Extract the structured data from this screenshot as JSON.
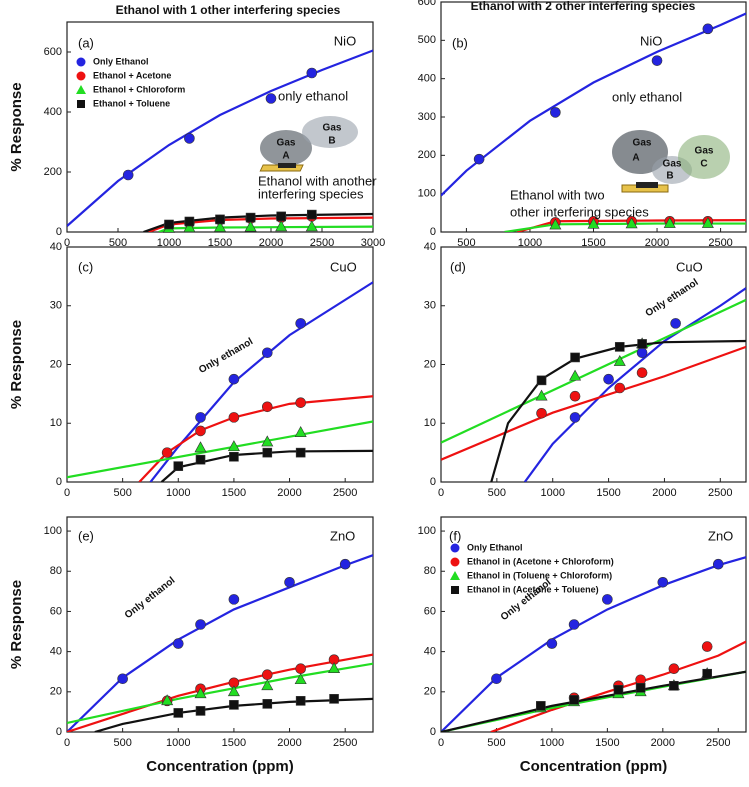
{
  "headings": [
    "Ethanol with 1 other interfering species",
    "Ethanol with 2 other interfering species"
  ],
  "chart_data": [
    {
      "type": "scatter",
      "ylabel": "% Response",
      "xlim": [
        0,
        3000
      ],
      "ylim": [
        0,
        700
      ],
      "xticks": [
        0,
        500,
        1000,
        1500,
        2000,
        2500,
        3000
      ],
      "yticks": [
        0,
        200,
        400,
        600
      ],
      "legend": "upper left",
      "annotations": [
        "(a)",
        "NiO",
        "only ethanol",
        "Gas",
        "A",
        "Gas",
        "B",
        "Ethanol with another",
        "interfering species"
      ],
      "series": [
        {
          "name": "Only Ethanol",
          "color": "#2424e0",
          "marker": "circle",
          "x": [
            600,
            1200,
            2000,
            2400
          ],
          "values": [
            190,
            312,
            445,
            530
          ],
          "fit_x": [
            0,
            500,
            1000,
            1500,
            2000,
            2500,
            3000
          ],
          "fit_values": [
            20,
            170,
            290,
            390,
            470,
            540,
            605
          ]
        },
        {
          "name": "Ethanol + Acetone",
          "color": "#ee1111",
          "marker": "circle",
          "x": [
            1000,
            1200,
            1500,
            1800,
            2100,
            2400
          ],
          "values": [
            22,
            30,
            40,
            45,
            48,
            52
          ],
          "fit_x": [
            800,
            1000,
            1500,
            2000,
            3000
          ],
          "fit_values": [
            0,
            25,
            40,
            45,
            48
          ]
        },
        {
          "name": "Ethanol + Chloroform",
          "color": "#22dd22",
          "marker": "triangle",
          "x": [
            1000,
            1200,
            1500,
            1800,
            2100,
            2400
          ],
          "values": [
            12,
            14,
            15,
            16,
            17,
            17
          ],
          "fit_x": [
            900,
            1000,
            1500,
            2000,
            3000
          ],
          "fit_values": [
            0,
            12,
            15,
            16,
            18
          ]
        },
        {
          "name": "Ethanol + Toluene",
          "color": "#111111",
          "marker": "square",
          "x": [
            1000,
            1200,
            1500,
            1800,
            2100,
            2400
          ],
          "values": [
            25,
            35,
            42,
            48,
            52,
            58
          ],
          "fit_x": [
            750,
            1000,
            1500,
            2000,
            3000
          ],
          "fit_values": [
            0,
            30,
            48,
            55,
            60
          ]
        }
      ]
    },
    {
      "type": "scatter",
      "xlim": [
        300,
        2700
      ],
      "ylim": [
        0,
        600
      ],
      "xticks": [
        500,
        1000,
        1500,
        2000,
        2500
      ],
      "yticks": [
        0,
        100,
        200,
        300,
        400,
        500,
        600
      ],
      "annotations": [
        "(b)",
        "NiO",
        "only ethanol",
        "Gas",
        "A",
        "Gas",
        "B",
        "Gas",
        "C",
        "Ethanol with two",
        "other interfering species"
      ],
      "series": [
        {
          "color": "#2424e0",
          "marker": "circle",
          "x": [
            600,
            1200,
            2000,
            2400
          ],
          "values": [
            190,
            312,
            447,
            530
          ],
          "fit_x": [
            300,
            500,
            1000,
            1500,
            2000,
            2500,
            2700
          ],
          "fit_values": [
            95,
            160,
            290,
            390,
            470,
            540,
            570
          ]
        },
        {
          "color": "#ee1111",
          "marker": "circle",
          "x": [
            1200,
            1500,
            1800,
            2100,
            2400
          ],
          "values": [
            25,
            28,
            28,
            28,
            28
          ],
          "fit_x": [
            900,
            1200,
            2000,
            2700
          ],
          "fit_values": [
            0,
            28,
            30,
            31
          ]
        },
        {
          "color": "#22dd22",
          "marker": "triangle",
          "x": [
            1200,
            1500,
            1800,
            2100,
            2400
          ],
          "values": [
            18,
            20,
            21,
            22,
            22
          ],
          "fit_x": [
            800,
            1200,
            2000,
            2700
          ],
          "fit_values": [
            0,
            20,
            22,
            22
          ]
        }
      ]
    },
    {
      "type": "scatter",
      "ylabel": "% Response",
      "xlim": [
        0,
        2750
      ],
      "ylim": [
        0,
        40
      ],
      "xticks": [
        0,
        500,
        1000,
        1500,
        2000,
        2500
      ],
      "yticks": [
        0,
        10,
        20,
        30,
        40
      ],
      "annotations": [
        "(c)",
        "CuO",
        "Only ethanol"
      ],
      "series": [
        {
          "color": "#2424e0",
          "marker": "circle",
          "x": [
            1200,
            1500,
            1800,
            2100
          ],
          "values": [
            11,
            17.5,
            22,
            27
          ],
          "fit_x": [
            750,
            1000,
            1500,
            2000,
            2500,
            2750
          ],
          "fit_values": [
            0,
            6,
            17,
            25,
            31,
            34
          ]
        },
        {
          "color": "#ee1111",
          "marker": "circle",
          "x": [
            900,
            1200,
            1500,
            1800,
            2100
          ],
          "values": [
            5,
            8.7,
            11,
            12.8,
            13.5
          ],
          "fit_x": [
            650,
            900,
            1200,
            1500,
            2000,
            2750
          ],
          "fit_values": [
            0,
            5,
            8.8,
            11,
            13.3,
            14.6
          ]
        },
        {
          "color": "#22dd22",
          "marker": "triangle",
          "x": [
            1200,
            1500,
            1800,
            2100
          ],
          "values": [
            5.8,
            6,
            6.8,
            8.4
          ],
          "fit_x": [
            0,
            2750
          ],
          "fit_values": [
            0.8,
            10.3
          ]
        },
        {
          "color": "#111111",
          "marker": "square",
          "x": [
            1000,
            1200,
            1500,
            1800,
            2100
          ],
          "values": [
            2.7,
            3.8,
            4.3,
            5,
            5
          ],
          "fit_x": [
            850,
            1000,
            1500,
            2000,
            2750
          ],
          "fit_values": [
            0,
            2.5,
            4.6,
            5.2,
            5.3
          ]
        }
      ]
    },
    {
      "type": "scatter",
      "xlim": [
        0,
        2730
      ],
      "ylim": [
        0,
        40
      ],
      "xticks": [
        0,
        500,
        1000,
        1500,
        2000,
        2500
      ],
      "yticks": [
        0,
        10,
        20,
        30,
        40
      ],
      "annotations": [
        "(d)",
        "CuO",
        "Only ethanol"
      ],
      "series": [
        {
          "color": "#2424e0",
          "marker": "circle",
          "x": [
            1200,
            1500,
            1800,
            2100
          ],
          "values": [
            11,
            17.5,
            22,
            27
          ],
          "fit_x": [
            750,
            1000,
            1500,
            2000,
            2500,
            2730
          ],
          "fit_values": [
            0,
            6.5,
            16,
            24,
            30,
            33
          ]
        },
        {
          "color": "#ee1111",
          "marker": "circle",
          "x": [
            900,
            1200,
            1600,
            1800
          ],
          "values": [
            11.7,
            14.6,
            16,
            18.6
          ],
          "fit_x": [
            0,
            1000,
            2000,
            2730
          ],
          "fit_values": [
            3.8,
            11.8,
            18,
            23
          ]
        },
        {
          "color": "#22dd22",
          "marker": "triangle",
          "x": [
            900,
            1200,
            1600,
            1800
          ],
          "values": [
            14.6,
            18,
            20.5,
            23.5
          ],
          "fit_x": [
            0,
            2730
          ],
          "fit_values": [
            6.7,
            31
          ]
        },
        {
          "color": "#111111",
          "marker": "square",
          "x": [
            900,
            1200,
            1600,
            1800
          ],
          "values": [
            17.3,
            21.2,
            23,
            23.5
          ],
          "fit_x": [
            450,
            600,
            900,
            1200,
            1600,
            2000,
            2730
          ],
          "fit_values": [
            0,
            10,
            17.5,
            21,
            23,
            23.8,
            24
          ]
        }
      ]
    },
    {
      "type": "scatter",
      "ylabel": "% Response",
      "xlabel": "Concentration (ppm)",
      "xlim": [
        0,
        2750
      ],
      "ylim": [
        0,
        107
      ],
      "xticks": [
        0,
        500,
        1000,
        1500,
        2000,
        2500
      ],
      "yticks": [
        0,
        20,
        40,
        60,
        80,
        100
      ],
      "annotations": [
        "(e)",
        "ZnO",
        "Only ethanol"
      ],
      "series": [
        {
          "color": "#2424e0",
          "marker": "circle",
          "x": [
            500,
            1000,
            1200,
            1500,
            2000,
            2500
          ],
          "values": [
            26.5,
            44,
            53.5,
            66,
            74.5,
            83.5
          ],
          "fit_x": [
            0,
            500,
            1000,
            1500,
            2000,
            2500,
            2750
          ],
          "fit_values": [
            0,
            27,
            46,
            61,
            72,
            83,
            88
          ]
        },
        {
          "color": "#ee1111",
          "marker": "circle",
          "x": [
            900,
            1200,
            1500,
            1800,
            2100,
            2400
          ],
          "values": [
            15.5,
            21.5,
            24.5,
            28.5,
            31.5,
            36
          ],
          "fit_x": [
            0,
            500,
            1000,
            1500,
            2000,
            2500,
            2750
          ],
          "fit_values": [
            0,
            9,
            18,
            25,
            31,
            36,
            38.5
          ]
        },
        {
          "color": "#22dd22",
          "marker": "triangle",
          "x": [
            900,
            1200,
            1500,
            1800,
            2100,
            2400
          ],
          "values": [
            15.5,
            19,
            20,
            23,
            26,
            31.5
          ],
          "fit_x": [
            0,
            1000,
            2000,
            2750
          ],
          "fit_values": [
            4.5,
            16.5,
            27,
            34
          ]
        },
        {
          "color": "#111111",
          "marker": "square",
          "x": [
            1000,
            1200,
            1500,
            1800,
            2100,
            2400
          ],
          "values": [
            9.5,
            10.5,
            13.5,
            14,
            15.5,
            16.5
          ],
          "fit_x": [
            250,
            500,
            1000,
            1500,
            2000,
            2750
          ],
          "fit_values": [
            0,
            4,
            9.5,
            13,
            15,
            16.5
          ]
        }
      ]
    },
    {
      "type": "scatter",
      "xlabel": "Concentration (ppm)",
      "xlim": [
        0,
        2750
      ],
      "ylim": [
        0,
        107
      ],
      "xticks": [
        0,
        500,
        1000,
        1500,
        2000,
        2500
      ],
      "yticks": [
        0,
        20,
        40,
        60,
        80,
        100
      ],
      "legend": "upper left",
      "annotations": [
        "(f)",
        "ZnO",
        "Only ethanol"
      ],
      "series": [
        {
          "name": "Only Ethanol",
          "color": "#2424e0",
          "marker": "circle",
          "x": [
            500,
            1000,
            1200,
            1500,
            2000,
            2500
          ],
          "values": [
            26.5,
            44,
            53.5,
            66,
            74.5,
            83.5
          ],
          "fit_x": [
            0,
            500,
            1000,
            1500,
            2000,
            2500,
            2750
          ],
          "fit_values": [
            0,
            27,
            46,
            61,
            73,
            83,
            87
          ]
        },
        {
          "name": "Ethanol in (Acetone + Chloroform)",
          "color": "#ee1111",
          "marker": "circle",
          "x": [
            1200,
            1600,
            1800,
            2100,
            2400
          ],
          "values": [
            17,
            23,
            26,
            31.5,
            42.5
          ],
          "fit_x": [
            450,
            1000,
            1500,
            2000,
            2500,
            2750
          ],
          "fit_values": [
            0,
            11,
            20,
            28.5,
            38,
            45
          ]
        },
        {
          "name": "Ethanol in (Toluene + Chloroform)",
          "color": "#22dd22",
          "marker": "triangle",
          "x": [
            900,
            1200,
            1600,
            1800,
            2100,
            2400
          ],
          "values": [
            12,
            15,
            19,
            20,
            23,
            29
          ],
          "fit_x": [
            0,
            1000,
            2000,
            2750
          ],
          "fit_values": [
            0,
            12,
            22.5,
            30
          ]
        },
        {
          "name": "Ethanol in (Acetone + Toluene)",
          "color": "#111111",
          "marker": "square",
          "x": [
            900,
            1200,
            1600,
            1800,
            2100,
            2400
          ],
          "values": [
            13,
            16,
            21,
            22,
            23,
            29
          ],
          "fit_x": [
            0,
            1000,
            2000,
            2750
          ],
          "fit_values": [
            0,
            13,
            23,
            30
          ]
        }
      ]
    }
  ]
}
